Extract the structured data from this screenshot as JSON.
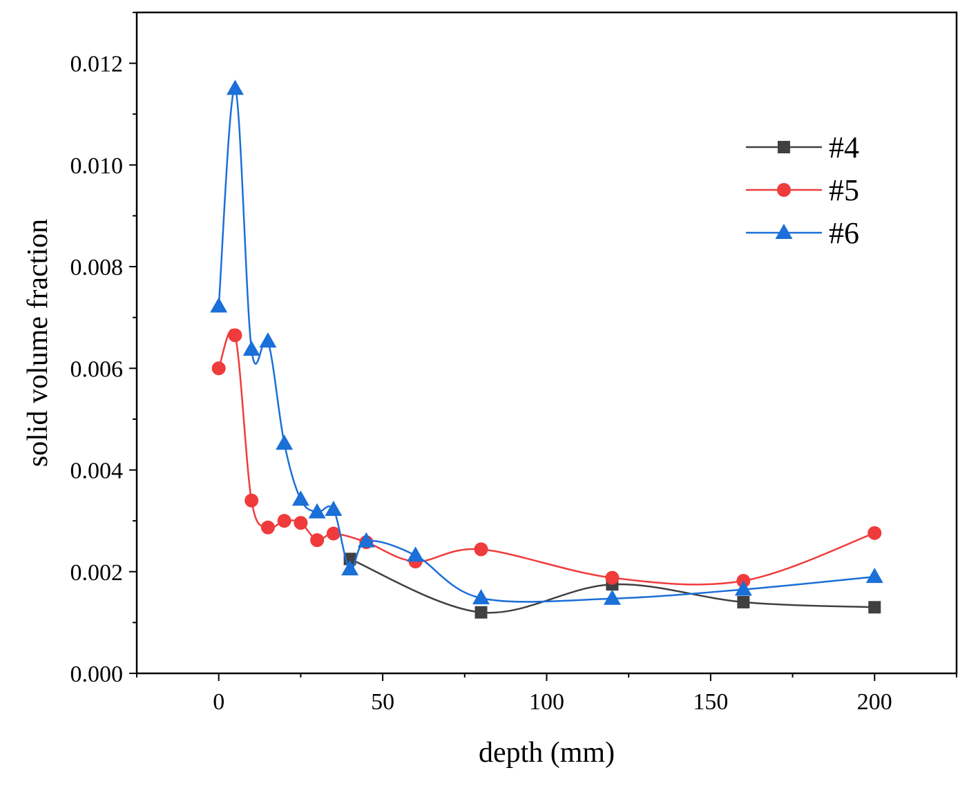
{
  "chart_data": {
    "type": "line",
    "title": "",
    "xlabel": "depth (mm)",
    "ylabel": "solid volume fraction",
    "xlim": [
      -25,
      225
    ],
    "ylim": [
      0,
      0.013
    ],
    "x_ticks": [
      0,
      50,
      100,
      150,
      200
    ],
    "x_tick_labels": [
      "0",
      "50",
      "100",
      "150",
      "200"
    ],
    "y_ticks": [
      0,
      0.002,
      0.004,
      0.006,
      0.008,
      0.01,
      0.012
    ],
    "y_tick_labels": [
      "0.000",
      "0.002",
      "0.004",
      "0.006",
      "0.008",
      "0.010",
      "0.012"
    ],
    "grid": false,
    "legend_position": "top-right",
    "series": [
      {
        "name": "#4",
        "marker": "square",
        "color": "#404040",
        "points": [
          [
            40,
            0.00225
          ],
          [
            80,
            0.0012
          ],
          [
            120,
            0.00175
          ],
          [
            160,
            0.0014
          ],
          [
            200,
            0.0013
          ]
        ]
      },
      {
        "name": "#5",
        "marker": "circle",
        "color": "#ef3b3b",
        "points": [
          [
            0,
            0.006
          ],
          [
            5,
            0.00665
          ],
          [
            10,
            0.0034
          ],
          [
            15,
            0.00287
          ],
          [
            20,
            0.003
          ],
          [
            25,
            0.00296
          ],
          [
            30,
            0.00262
          ],
          [
            35,
            0.00275
          ],
          [
            45,
            0.00258
          ],
          [
            60,
            0.0022
          ],
          [
            80,
            0.00244
          ],
          [
            120,
            0.00188
          ],
          [
            160,
            0.00182
          ],
          [
            200,
            0.00276
          ]
        ]
      },
      {
        "name": "#6",
        "marker": "triangle",
        "color": "#1a6fd8",
        "points": [
          [
            0,
            0.00722
          ],
          [
            5,
            0.0115
          ],
          [
            10,
            0.00637
          ],
          [
            15,
            0.00653
          ],
          [
            20,
            0.00452
          ],
          [
            25,
            0.00342
          ],
          [
            30,
            0.00317
          ],
          [
            35,
            0.00322
          ],
          [
            40,
            0.00205
          ],
          [
            45,
            0.0026
          ],
          [
            60,
            0.00232
          ],
          [
            80,
            0.00148
          ],
          [
            120,
            0.00147
          ],
          [
            160,
            0.00165
          ],
          [
            200,
            0.0019
          ]
        ]
      }
    ]
  }
}
